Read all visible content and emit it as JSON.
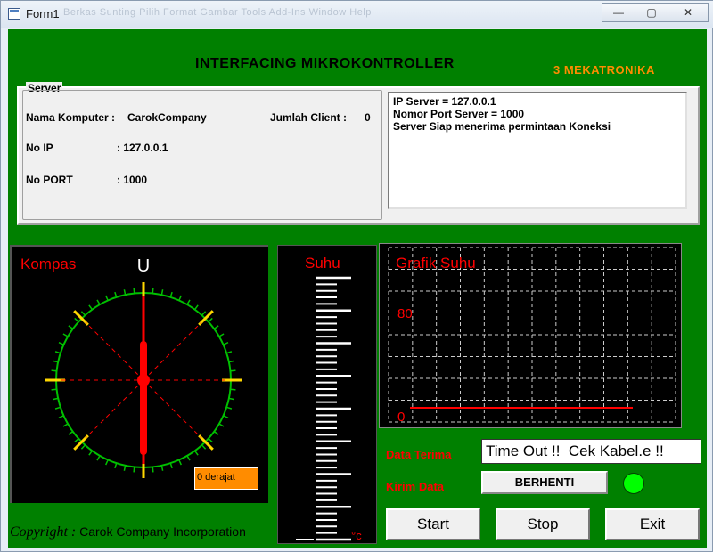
{
  "window": {
    "title": "Form1",
    "ghost_menu": "Berkas  Sunting  Pilih  Format  Gambar  Tools  Add-Ins  Window  Help",
    "controls": {
      "minimize": "—",
      "maximize": "▢",
      "close": "✕"
    }
  },
  "header": {
    "title": "INTERFACING MIKROKONTROLLER",
    "subtitle": "3  MEKATRONIKA"
  },
  "server": {
    "group_label": "Server",
    "nama_komputer_label": "Nama Komputer :",
    "nama_komputer_value": "CarokCompany",
    "jumlah_client_label": "Jumlah Client  :",
    "jumlah_client_value": "0",
    "no_ip_label": "No IP",
    "no_ip_value": ":  127.0.0.1",
    "no_port_label": "No PORT",
    "no_port_value": ":  1000",
    "log_lines": [
      "IP Server = 127.0.0.1",
      "Nomor Port Server = 1000",
      "Server Siap menerima permintaan Koneksi"
    ]
  },
  "kompas": {
    "title": "Kompas",
    "north_label": "U",
    "readout": "0 derajat",
    "heading_degrees": 0,
    "colors": {
      "ring": "#00c000",
      "major_ticks": "#ffd700",
      "needle": "#ff0000",
      "diagonals": "#ff0000"
    }
  },
  "suhu": {
    "title": "Suhu",
    "unit": "°c",
    "tick_color": "#ffffff"
  },
  "grafik": {
    "title": "Grafik Suhu",
    "y_labels": [
      "80",
      "0"
    ],
    "line_color": "#ff0000",
    "grid_color": "#cccccc"
  },
  "data": {
    "terima_label": "Data Terima",
    "terima_value": "Time Out !!  Cek Kabel.e !!",
    "kirim_label": "Kirim Data",
    "kirim_value": "BERHENTI",
    "led_color": "#00ff00"
  },
  "buttons": {
    "start": "Start",
    "stop": "Stop",
    "exit": "Exit"
  },
  "footer": {
    "copyright_label": "Copyright :",
    "copyright_text": "Carok Company Incorporation"
  }
}
